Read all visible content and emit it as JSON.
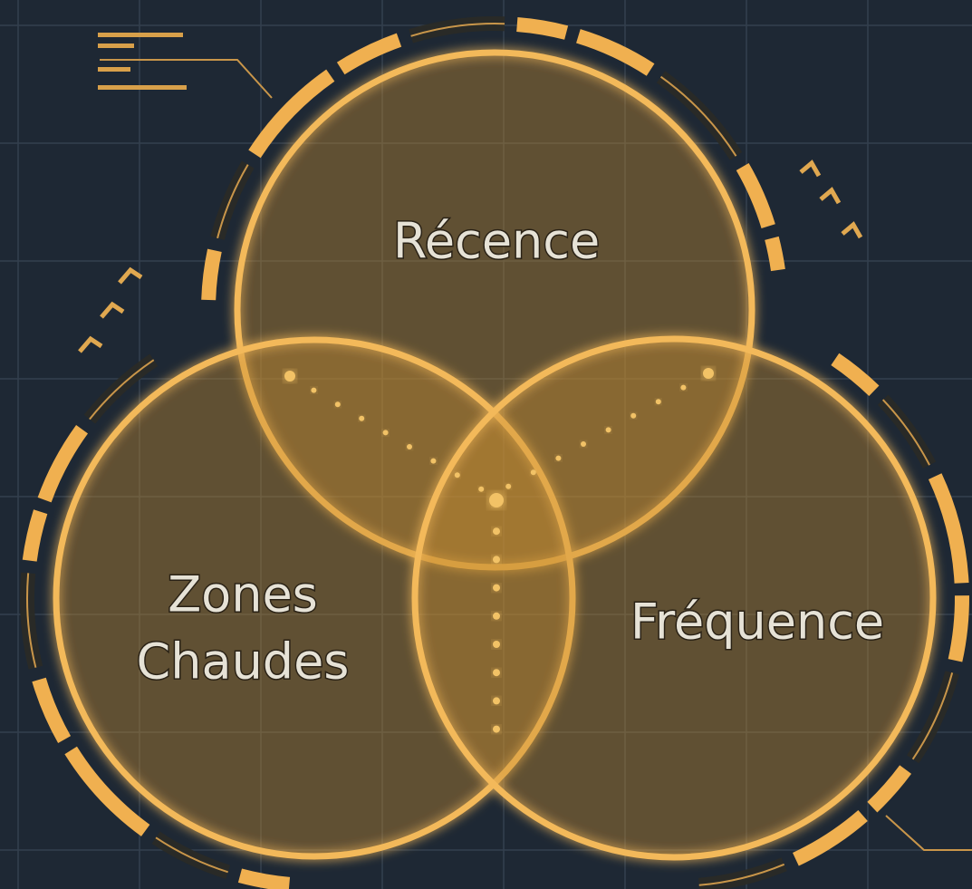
{
  "diagram": {
    "sets": [
      {
        "lines": [
          "Récence"
        ]
      },
      {
        "lines": [
          "Zones",
          "Chaudes"
        ]
      },
      {
        "lines": [
          "Fréquence"
        ]
      }
    ]
  }
}
